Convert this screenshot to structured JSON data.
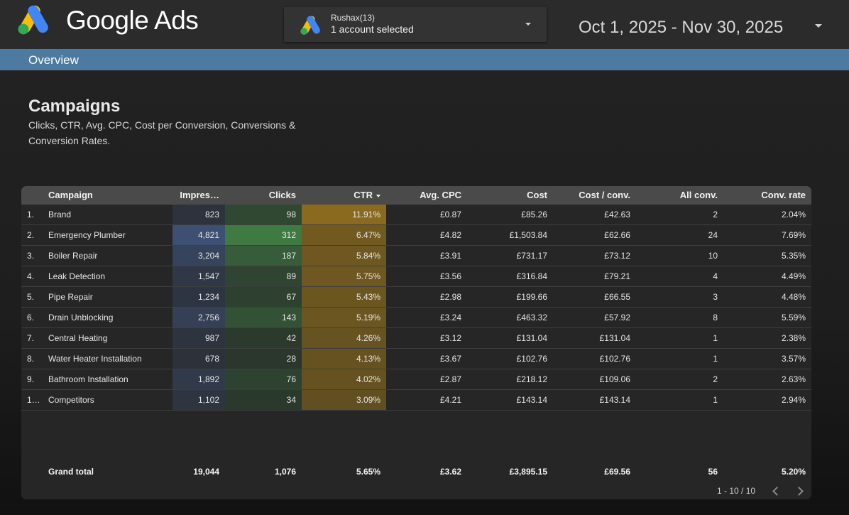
{
  "app": {
    "name": "Google Ads"
  },
  "account": {
    "name": "Rushax(13)",
    "selected": "1 account selected"
  },
  "date_range": "Oct 1, 2025 - Nov 30, 2025",
  "nav": {
    "overview": "Overview"
  },
  "section": {
    "title": "Campaigns",
    "subtitle": "Clicks, CTR, Avg. CPC, Cost per Conversion, Conversions & Conversion Rates."
  },
  "colors": {
    "topbar": "#2b2b2b",
    "overview_bar": "#4d7aa1",
    "logo_blue": "#4285F4",
    "logo_yellow": "#FBBC04",
    "logo_green": "#34A853",
    "heat_impressions": "#3d4f72",
    "heat_clicks": "#3f7a43",
    "heat_ctr": "#8a6a1e"
  },
  "table": {
    "columns": [
      "Campaign",
      "Impres…",
      "Clicks",
      "CTR",
      "Avg. CPC",
      "Cost",
      "Cost / conv.",
      "All conv.",
      "Conv. rate"
    ],
    "sort": {
      "column": "CTR",
      "direction": "descending"
    },
    "rows": [
      {
        "n": "1.",
        "campaign": "Brand",
        "impressions": "823",
        "clicks": "98",
        "ctr": "11.91%",
        "avg_cpc": "£0.87",
        "cost": "£85.26",
        "cost_conv": "£42.63",
        "all_conv": "2",
        "conv_rate": "2.04%"
      },
      {
        "n": "2.",
        "campaign": "Emergency Plumber",
        "impressions": "4,821",
        "clicks": "312",
        "ctr": "6.47%",
        "avg_cpc": "£4.82",
        "cost": "£1,503.84",
        "cost_conv": "£62.66",
        "all_conv": "24",
        "conv_rate": "7.69%"
      },
      {
        "n": "3.",
        "campaign": "Boiler Repair",
        "impressions": "3,204",
        "clicks": "187",
        "ctr": "5.84%",
        "avg_cpc": "£3.91",
        "cost": "£731.17",
        "cost_conv": "£73.12",
        "all_conv": "10",
        "conv_rate": "5.35%"
      },
      {
        "n": "4.",
        "campaign": "Leak Detection",
        "impressions": "1,547",
        "clicks": "89",
        "ctr": "5.75%",
        "avg_cpc": "£3.56",
        "cost": "£316.84",
        "cost_conv": "£79.21",
        "all_conv": "4",
        "conv_rate": "4.49%"
      },
      {
        "n": "5.",
        "campaign": "Pipe Repair",
        "impressions": "1,234",
        "clicks": "67",
        "ctr": "5.43%",
        "avg_cpc": "£2.98",
        "cost": "£199.66",
        "cost_conv": "£66.55",
        "all_conv": "3",
        "conv_rate": "4.48%"
      },
      {
        "n": "6.",
        "campaign": "Drain Unblocking",
        "impressions": "2,756",
        "clicks": "143",
        "ctr": "5.19%",
        "avg_cpc": "£3.24",
        "cost": "£463.32",
        "cost_conv": "£57.92",
        "all_conv": "8",
        "conv_rate": "5.59%"
      },
      {
        "n": "7.",
        "campaign": "Central Heating",
        "impressions": "987",
        "clicks": "42",
        "ctr": "4.26%",
        "avg_cpc": "£3.12",
        "cost": "£131.04",
        "cost_conv": "£131.04",
        "all_conv": "1",
        "conv_rate": "2.38%"
      },
      {
        "n": "8.",
        "campaign": "Water Heater Installation",
        "impressions": "678",
        "clicks": "28",
        "ctr": "4.13%",
        "avg_cpc": "£3.67",
        "cost": "£102.76",
        "cost_conv": "£102.76",
        "all_conv": "1",
        "conv_rate": "3.57%"
      },
      {
        "n": "9.",
        "campaign": "Bathroom Installation",
        "impressions": "1,892",
        "clicks": "76",
        "ctr": "4.02%",
        "avg_cpc": "£2.87",
        "cost": "£218.12",
        "cost_conv": "£109.06",
        "all_conv": "2",
        "conv_rate": "2.63%"
      },
      {
        "n": "1…",
        "campaign": "Competitors",
        "impressions": "1,102",
        "clicks": "34",
        "ctr": "3.09%",
        "avg_cpc": "£4.21",
        "cost": "£143.14",
        "cost_conv": "£143.14",
        "all_conv": "1",
        "conv_rate": "2.94%"
      }
    ],
    "grand_total": {
      "label": "Grand total",
      "impressions": "19,044",
      "clicks": "1,076",
      "ctr": "5.65%",
      "avg_cpc": "£3.62",
      "cost": "£3,895.15",
      "cost_conv": "£69.56",
      "all_conv": "56",
      "conv_rate": "5.20%"
    },
    "pagination": "1 - 10 / 10"
  }
}
